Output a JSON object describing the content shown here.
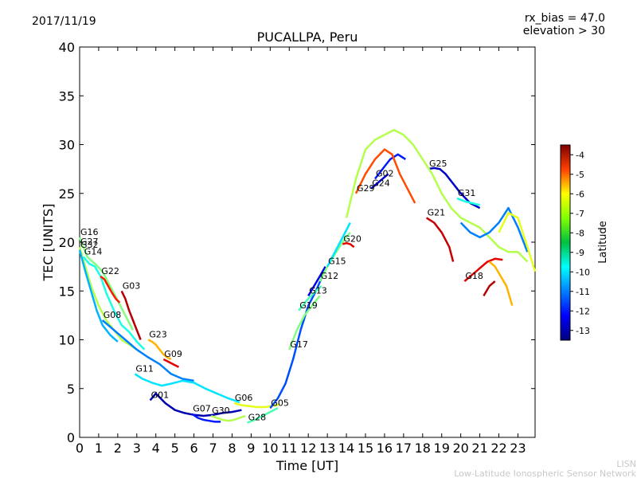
{
  "header": {
    "date": "2017/11/19",
    "title": "PUCALLPA, Peru",
    "bias": "rx_bias = 47.0",
    "elevation": "elevation > 30"
  },
  "footer": {
    "line1": "LISN",
    "line2": "Low-Latitude Ionospheric Sensor Network"
  },
  "chart_data": {
    "type": "line",
    "title": "PUCALLPA, Peru",
    "xlabel": "Time [UT]",
    "ylabel": "TEC [UNITS]",
    "xlim": [
      0,
      23.9
    ],
    "ylim": [
      0,
      40
    ],
    "xticks": [
      0,
      1,
      2,
      3,
      4,
      5,
      6,
      7,
      8,
      9,
      10,
      11,
      12,
      13,
      14,
      15,
      16,
      17,
      18,
      19,
      20,
      21,
      22,
      23
    ],
    "yticks": [
      0,
      5,
      10,
      15,
      20,
      25,
      30,
      35,
      40
    ],
    "colorbar": {
      "label": "Latitude",
      "range": [
        -13.5,
        -3.5
      ],
      "ticks": [
        -4,
        -5,
        -6,
        -7,
        -8,
        -9,
        -10,
        -11,
        -12,
        -13
      ]
    },
    "series": [
      {
        "name": "G16",
        "color_lat": -8.5,
        "x": [
          0.0,
          0.4,
          0.8,
          1.2,
          1.6,
          2.0,
          2.4,
          2.8
        ],
        "y": [
          20.5,
          18.5,
          17.8,
          17.0,
          15.5,
          14.0,
          12.5,
          11.0
        ]
      },
      {
        "name": "G27",
        "color_lat": -8.0,
        "x": [
          0.0,
          0.3,
          0.6,
          1.0,
          1.4,
          1.8,
          2.2,
          2.6,
          3.0
        ],
        "y": [
          19.5,
          17.5,
          15.5,
          13.5,
          12.0,
          11.0,
          10.0,
          9.5,
          9.0
        ]
      },
      {
        "name": "G32",
        "color_lat": -10.5,
        "x": [
          0.0,
          0.3,
          0.6,
          0.9,
          1.2,
          1.6,
          2.0
        ],
        "y": [
          19.2,
          17.0,
          15.0,
          13.0,
          11.5,
          10.5,
          9.8
        ]
      },
      {
        "name": "G14",
        "color_lat": -9.5,
        "x": [
          0.2,
          0.5,
          0.8,
          1.1,
          1.4,
          1.8,
          2.2,
          2.6,
          3.0,
          3.4
        ],
        "y": [
          18.5,
          17.8,
          17.5,
          16.5,
          14.8,
          13.0,
          11.5,
          10.8,
          9.8,
          9.0
        ]
      },
      {
        "name": "G22",
        "color_lat": -5.0,
        "x": [
          1.1,
          1.3,
          1.5,
          1.7,
          1.9,
          2.1
        ],
        "y": [
          16.5,
          16.2,
          15.5,
          14.8,
          14.2,
          13.8
        ]
      },
      {
        "name": "G03",
        "color_lat": -4.0,
        "x": [
          2.2,
          2.4,
          2.6,
          2.8,
          3.0,
          3.2
        ],
        "y": [
          15.0,
          14.2,
          13.0,
          12.0,
          11.0,
          10.0
        ]
      },
      {
        "name": "G08",
        "color_lat": -11.0,
        "x": [
          1.2,
          1.8,
          2.4,
          3.0,
          3.6,
          4.2,
          4.8,
          5.4,
          6.0
        ],
        "y": [
          12.0,
          11.0,
          10.0,
          9.0,
          8.2,
          7.5,
          6.5,
          6.0,
          5.8
        ]
      },
      {
        "name": "G23",
        "color_lat": -6.5,
        "x": [
          3.6,
          3.8,
          4.0,
          4.2,
          4.4,
          4.6,
          4.8
        ],
        "y": [
          10.0,
          9.8,
          9.5,
          9.0,
          8.5,
          8.2,
          8.0
        ]
      },
      {
        "name": "G09",
        "color_lat": -4.5,
        "x": [
          4.4,
          4.6,
          4.8,
          5.0,
          5.2
        ],
        "y": [
          8.0,
          7.8,
          7.6,
          7.4,
          7.2
        ]
      },
      {
        "name": "G11",
        "color_lat": -10.0,
        "x": [
          2.9,
          3.3,
          3.8,
          4.3,
          4.8,
          5.4,
          6.0,
          6.6,
          7.2,
          7.8,
          8.4
        ],
        "y": [
          6.5,
          6.0,
          5.6,
          5.3,
          5.5,
          5.8,
          5.6,
          5.0,
          4.5,
          4.0,
          3.6
        ]
      },
      {
        "name": "G01",
        "color_lat": -13.0,
        "x": [
          3.7,
          4.0,
          4.5,
          5.0,
          5.5,
          6.0,
          6.5,
          7.0,
          7.5,
          8.0,
          8.5
        ],
        "y": [
          3.8,
          4.5,
          3.5,
          2.8,
          2.5,
          2.3,
          2.2,
          2.3,
          2.5,
          2.6,
          2.8
        ]
      },
      {
        "name": "G07",
        "color_lat": -12.0,
        "x": [
          5.9,
          6.2,
          6.5,
          6.8,
          7.1,
          7.4
        ],
        "y": [
          2.4,
          2.0,
          1.8,
          1.7,
          1.6,
          1.6
        ]
      },
      {
        "name": "G30",
        "color_lat": -8.0,
        "x": [
          6.9,
          7.2,
          7.5,
          7.8,
          8.1,
          8.4,
          8.7
        ],
        "y": [
          2.2,
          2.0,
          1.8,
          1.7,
          1.8,
          2.0,
          2.2
        ]
      },
      {
        "name": "G06",
        "color_lat": -7.5,
        "x": [
          8.1,
          8.5,
          8.9,
          9.3,
          9.7,
          10.1,
          10.5
        ],
        "y": [
          3.5,
          3.3,
          3.2,
          3.1,
          3.1,
          3.2,
          3.4
        ]
      },
      {
        "name": "G28",
        "color_lat": -9.0,
        "x": [
          8.8,
          9.2,
          9.6,
          10.0,
          10.4
        ],
        "y": [
          1.5,
          1.8,
          2.2,
          2.6,
          3.0
        ]
      },
      {
        "name": "G05",
        "color_lat": -11.5,
        "x": [
          10.0,
          10.4,
          10.8,
          11.2,
          11.6,
          12.0,
          12.4,
          12.8
        ],
        "y": [
          3.0,
          4.0,
          5.5,
          8.0,
          11.0,
          13.5,
          15.0,
          16.8
        ]
      },
      {
        "name": "G17",
        "color_lat": -8.5,
        "x": [
          11.0,
          11.4,
          11.8,
          12.2,
          12.6
        ],
        "y": [
          9.0,
          11.0,
          12.5,
          13.5,
          14.5
        ]
      },
      {
        "name": "G19",
        "color_lat": -9.0,
        "x": [
          11.5,
          11.9,
          12.3,
          12.7
        ],
        "y": [
          13.0,
          14.0,
          14.8,
          15.5
        ]
      },
      {
        "name": "G13",
        "color_lat": -12.5,
        "x": [
          12.0,
          12.3,
          12.6,
          12.9
        ],
        "y": [
          14.5,
          15.5,
          16.5,
          17.5
        ]
      },
      {
        "name": "G12",
        "color_lat": -8.5,
        "x": [
          12.6,
          13.0,
          13.4,
          13.8,
          14.2
        ],
        "y": [
          16.0,
          17.5,
          18.8,
          20.0,
          21.0
        ]
      },
      {
        "name": "G15",
        "color_lat": -10.0,
        "x": [
          13.0,
          13.4,
          13.8,
          14.2
        ],
        "y": [
          17.5,
          19.0,
          20.5,
          22.0
        ]
      },
      {
        "name": "G20",
        "color_lat": -4.5,
        "x": [
          13.8,
          14.0,
          14.2,
          14.4
        ],
        "y": [
          19.8,
          19.9,
          19.8,
          19.5
        ]
      },
      {
        "name": "G24",
        "color_lat": -12.5,
        "x": [
          15.3,
          15.6,
          15.9,
          16.2
        ],
        "y": [
          25.5,
          26.0,
          26.5,
          27.0
        ]
      },
      {
        "name": "G02",
        "color_lat": -12.0,
        "x": [
          15.5,
          15.9,
          16.3,
          16.7,
          17.1
        ],
        "y": [
          26.5,
          27.5,
          28.5,
          29.0,
          28.5
        ]
      },
      {
        "name": "G29",
        "color_lat": -5.5,
        "x": [
          14.5,
          15.0,
          15.5,
          16.0,
          16.4,
          16.8,
          17.2,
          17.6
        ],
        "y": [
          25.0,
          27.0,
          28.5,
          29.5,
          29.0,
          27.0,
          25.5,
          24.0
        ]
      },
      {
        "name": "G25",
        "color_lat": -12.8,
        "x": [
          18.3,
          18.6,
          18.9,
          19.2,
          19.6,
          20.0,
          20.5,
          21.0
        ],
        "y": [
          27.5,
          27.6,
          27.5,
          27.0,
          26.0,
          25.0,
          24.0,
          23.5
        ]
      },
      {
        "name": "G31",
        "color_lat": -9.5,
        "x": [
          19.8,
          20.2,
          20.6,
          21.0
        ],
        "y": [
          24.5,
          24.2,
          24.0,
          23.8
        ]
      },
      {
        "name": "G21",
        "color_lat": -4.2,
        "x": [
          18.2,
          18.6,
          19.0,
          19.4,
          19.6
        ],
        "y": [
          22.5,
          22.0,
          21.0,
          19.5,
          18.0
        ]
      },
      {
        "name": "G18",
        "color_lat": -4.5,
        "x": [
          20.2,
          20.5,
          20.8,
          21.1,
          21.4,
          21.8,
          22.2
        ],
        "y": [
          16.0,
          16.5,
          17.0,
          17.5,
          18.0,
          18.3,
          18.2
        ]
      },
      {
        "name": "",
        "color_lat": -8.0,
        "x": [
          14.0,
          14.5,
          15.0,
          15.5,
          16.0,
          16.5,
          17.0,
          17.5,
          18.0,
          18.5,
          19.0,
          19.5,
          20.0,
          20.5,
          21.0,
          21.5,
          22.0,
          22.5,
          23.0,
          23.5
        ],
        "y": [
          22.5,
          26.5,
          29.5,
          30.5,
          31.0,
          31.5,
          31.0,
          30.0,
          28.5,
          27.0,
          25.0,
          23.5,
          22.5,
          22.0,
          21.5,
          20.5,
          19.5,
          19.0,
          19.0,
          18.0
        ]
      },
      {
        "name": "",
        "color_lat": -11.0,
        "x": [
          20.0,
          20.5,
          21.0,
          21.5,
          22.0,
          22.5,
          23.0,
          23.5
        ],
        "y": [
          22.0,
          21.0,
          20.5,
          21.0,
          22.0,
          23.5,
          21.5,
          19.0
        ]
      },
      {
        "name": "",
        "color_lat": -6.5,
        "x": [
          21.5,
          21.8,
          22.1,
          22.4,
          22.7
        ],
        "y": [
          18.0,
          17.5,
          16.5,
          15.5,
          13.5
        ]
      },
      {
        "name": "",
        "color_lat": -4.0,
        "x": [
          21.2,
          21.5,
          21.8
        ],
        "y": [
          14.5,
          15.5,
          16.0
        ]
      },
      {
        "name": "",
        "color_lat": -7.5,
        "x": [
          22.0,
          22.5,
          23.0,
          23.5,
          23.9
        ],
        "y": [
          21.0,
          23.0,
          22.5,
          19.5,
          17.0
        ]
      }
    ]
  }
}
